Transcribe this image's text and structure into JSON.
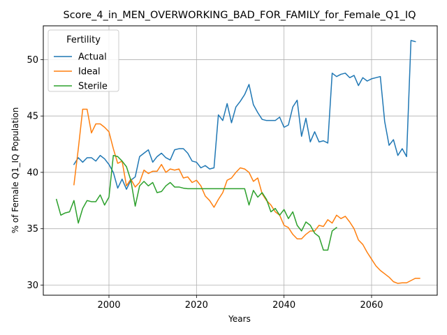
{
  "chart_data": {
    "type": "line",
    "title": "Score_4_in_MEN_OVERWORKING_BAD_FOR_FAMILY_for_Female_Q1_IQ",
    "xlabel": "Years",
    "ylabel": "% of Female Q1_IQ Population",
    "xlim": [
      1985,
      2075
    ],
    "ylim": [
      29.1,
      53.0
    ],
    "xticks": [
      2000,
      2020,
      2040,
      2060
    ],
    "yticks": [
      30,
      35,
      40,
      45,
      50
    ],
    "grid": true,
    "legend": {
      "title": "Fertility",
      "placement": "top-left"
    },
    "series": [
      {
        "name": "Actual",
        "color": "#1f77b4",
        "points": [
          [
            1992,
            40.7
          ],
          [
            1993,
            41.3
          ],
          [
            1994,
            40.9
          ],
          [
            1995,
            41.3
          ],
          [
            1996,
            41.3
          ],
          [
            1997,
            41.0
          ],
          [
            1998,
            41.5
          ],
          [
            1999,
            41.2
          ],
          [
            2000,
            40.7
          ],
          [
            2001,
            40.0
          ],
          [
            2002,
            38.6
          ],
          [
            2003,
            39.4
          ],
          [
            2004,
            38.5
          ],
          [
            2005,
            39.3
          ],
          [
            2006,
            39.6
          ],
          [
            2007,
            41.4
          ],
          [
            2008,
            41.7
          ],
          [
            2009,
            42.0
          ],
          [
            2010,
            40.9
          ],
          [
            2011,
            41.4
          ],
          [
            2012,
            41.7
          ],
          [
            2013,
            41.3
          ],
          [
            2014,
            41.1
          ],
          [
            2015,
            42.0
          ],
          [
            2016,
            42.1
          ],
          [
            2017,
            42.1
          ],
          [
            2018,
            41.7
          ],
          [
            2019,
            41.0
          ],
          [
            2020,
            40.9
          ],
          [
            2021,
            40.4
          ],
          [
            2022,
            40.6
          ],
          [
            2023,
            40.3
          ],
          [
            2024,
            40.4
          ],
          [
            2025,
            45.1
          ],
          [
            2026,
            44.6
          ],
          [
            2027,
            46.1
          ],
          [
            2028,
            44.4
          ],
          [
            2029,
            45.8
          ],
          [
            2030,
            46.3
          ],
          [
            2031,
            46.9
          ],
          [
            2032,
            47.8
          ],
          [
            2033,
            46.0
          ],
          [
            2034,
            45.3
          ],
          [
            2035,
            44.7
          ],
          [
            2036,
            44.6
          ],
          [
            2037,
            44.6
          ],
          [
            2038,
            44.6
          ],
          [
            2039,
            44.9
          ],
          [
            2040,
            44.0
          ],
          [
            2041,
            44.2
          ],
          [
            2042,
            45.8
          ],
          [
            2043,
            46.4
          ],
          [
            2044,
            43.2
          ],
          [
            2045,
            44.8
          ],
          [
            2046,
            42.7
          ],
          [
            2047,
            43.6
          ],
          [
            2048,
            42.7
          ],
          [
            2049,
            42.8
          ],
          [
            2050,
            42.6
          ],
          [
            2051,
            48.8
          ],
          [
            2052,
            48.5
          ],
          [
            2053,
            48.7
          ],
          [
            2054,
            48.8
          ],
          [
            2055,
            48.4
          ],
          [
            2056,
            48.6
          ],
          [
            2057,
            47.7
          ],
          [
            2058,
            48.4
          ],
          [
            2059,
            48.1
          ],
          [
            2060,
            48.3
          ],
          [
            2061,
            48.4
          ],
          [
            2062,
            48.5
          ],
          [
            2063,
            44.5
          ],
          [
            2064,
            42.4
          ],
          [
            2065,
            42.9
          ],
          [
            2066,
            41.5
          ],
          [
            2067,
            42.1
          ],
          [
            2068,
            41.4
          ],
          [
            2069,
            51.7
          ],
          [
            2070,
            51.6
          ]
        ]
      },
      {
        "name": "Ideal",
        "color": "#ff7f0e",
        "points": [
          [
            1992,
            38.9
          ],
          [
            1993,
            42.1
          ],
          [
            1994,
            45.6
          ],
          [
            1995,
            45.6
          ],
          [
            1996,
            43.5
          ],
          [
            1997,
            44.3
          ],
          [
            1998,
            44.3
          ],
          [
            1999,
            44.0
          ],
          [
            2000,
            43.6
          ],
          [
            2001,
            42.1
          ],
          [
            2002,
            40.8
          ],
          [
            2003,
            41.0
          ],
          [
            2004,
            38.8
          ],
          [
            2005,
            39.4
          ],
          [
            2006,
            38.7
          ],
          [
            2007,
            39.1
          ],
          [
            2008,
            40.2
          ],
          [
            2009,
            39.9
          ],
          [
            2010,
            40.1
          ],
          [
            2011,
            40.1
          ],
          [
            2012,
            40.7
          ],
          [
            2013,
            40.0
          ],
          [
            2014,
            40.3
          ],
          [
            2015,
            40.2
          ],
          [
            2016,
            40.3
          ],
          [
            2017,
            39.5
          ],
          [
            2018,
            39.6
          ],
          [
            2019,
            39.1
          ],
          [
            2020,
            39.3
          ],
          [
            2021,
            38.8
          ],
          [
            2022,
            37.9
          ],
          [
            2023,
            37.5
          ],
          [
            2024,
            36.9
          ],
          [
            2025,
            37.6
          ],
          [
            2026,
            38.2
          ],
          [
            2027,
            39.3
          ],
          [
            2028,
            39.5
          ],
          [
            2029,
            40.0
          ],
          [
            2030,
            40.4
          ],
          [
            2031,
            40.3
          ],
          [
            2032,
            40.0
          ],
          [
            2033,
            39.2
          ],
          [
            2034,
            39.5
          ],
          [
            2035,
            38.1
          ],
          [
            2036,
            37.5
          ],
          [
            2037,
            37.1
          ],
          [
            2038,
            36.5
          ],
          [
            2039,
            36.2
          ],
          [
            2040,
            35.3
          ],
          [
            2041,
            35.1
          ],
          [
            2042,
            34.5
          ],
          [
            2043,
            34.1
          ],
          [
            2044,
            34.1
          ],
          [
            2045,
            34.5
          ],
          [
            2046,
            34.8
          ],
          [
            2047,
            34.8
          ],
          [
            2048,
            35.3
          ],
          [
            2049,
            35.2
          ],
          [
            2050,
            35.8
          ],
          [
            2051,
            35.5
          ],
          [
            2052,
            36.2
          ],
          [
            2053,
            35.9
          ],
          [
            2054,
            36.1
          ],
          [
            2055,
            35.6
          ],
          [
            2056,
            35.0
          ],
          [
            2057,
            34.0
          ],
          [
            2058,
            33.6
          ],
          [
            2059,
            32.9
          ],
          [
            2060,
            32.3
          ],
          [
            2061,
            31.7
          ],
          [
            2062,
            31.3
          ],
          [
            2063,
            31.0
          ],
          [
            2064,
            30.7
          ],
          [
            2065,
            30.3
          ],
          [
            2066,
            30.15
          ],
          [
            2067,
            30.2
          ],
          [
            2068,
            30.2
          ],
          [
            2069,
            30.4
          ],
          [
            2070,
            30.6
          ],
          [
            2071,
            30.6
          ]
        ]
      },
      {
        "name": "Sterile",
        "color": "#2ca02c",
        "points": [
          [
            1988,
            37.6
          ],
          [
            1989,
            36.2
          ],
          [
            1990,
            36.4
          ],
          [
            1991,
            36.5
          ],
          [
            1992,
            37.5
          ],
          [
            1993,
            35.5
          ],
          [
            1994,
            36.8
          ],
          [
            1995,
            37.5
          ],
          [
            1996,
            37.4
          ],
          [
            1997,
            37.4
          ],
          [
            1998,
            38.0
          ],
          [
            1999,
            37.1
          ],
          [
            2000,
            37.8
          ],
          [
            2001,
            41.5
          ],
          [
            2002,
            41.4
          ],
          [
            2003,
            41.0
          ],
          [
            2004,
            40.5
          ],
          [
            2005,
            39.3
          ],
          [
            2006,
            37.0
          ],
          [
            2007,
            38.8
          ],
          [
            2008,
            39.2
          ],
          [
            2009,
            38.8
          ],
          [
            2010,
            39.1
          ],
          [
            2011,
            38.2
          ],
          [
            2012,
            38.3
          ],
          [
            2013,
            38.8
          ],
          [
            2014,
            39.1
          ],
          [
            2015,
            38.7
          ],
          [
            2016,
            38.7
          ],
          [
            2017,
            38.6
          ],
          [
            2018,
            38.55
          ],
          [
            2019,
            38.55
          ],
          [
            2020,
            38.55
          ],
          [
            2021,
            38.55
          ],
          [
            2022,
            38.55
          ],
          [
            2023,
            38.55
          ],
          [
            2024,
            38.55
          ],
          [
            2025,
            38.55
          ],
          [
            2026,
            38.55
          ],
          [
            2027,
            38.55
          ],
          [
            2028,
            38.55
          ],
          [
            2029,
            38.55
          ],
          [
            2030,
            38.55
          ],
          [
            2031,
            38.55
          ],
          [
            2032,
            37.1
          ],
          [
            2033,
            38.4
          ],
          [
            2034,
            37.8
          ],
          [
            2035,
            38.2
          ],
          [
            2036,
            37.6
          ],
          [
            2037,
            36.5
          ],
          [
            2038,
            36.8
          ],
          [
            2039,
            36.2
          ],
          [
            2040,
            36.7
          ],
          [
            2041,
            35.9
          ],
          [
            2042,
            36.5
          ],
          [
            2043,
            35.3
          ],
          [
            2044,
            34.8
          ],
          [
            2045,
            35.6
          ],
          [
            2046,
            35.3
          ],
          [
            2047,
            34.6
          ],
          [
            2048,
            34.3
          ],
          [
            2049,
            33.1
          ],
          [
            2050,
            33.1
          ],
          [
            2051,
            34.8
          ],
          [
            2052,
            35.1
          ]
        ]
      }
    ]
  }
}
